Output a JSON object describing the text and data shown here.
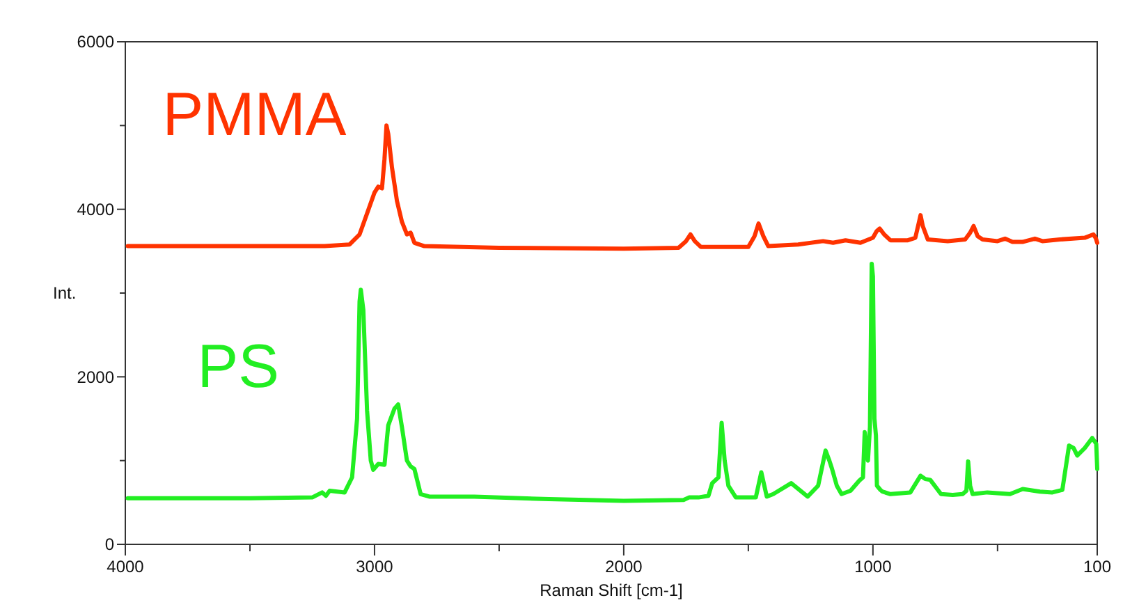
{
  "chart_data": {
    "type": "line",
    "xlabel": "Raman Shift [cm-1]",
    "ylabel": "Int.",
    "xlim": [
      4000,
      100
    ],
    "ylim": [
      0,
      6000
    ],
    "xticks": [
      4000,
      {
        "value": 3500,
        "label": null
      },
      3000,
      {
        "value": 2500,
        "label": null
      },
      2000,
      {
        "value": 1500,
        "label": null
      },
      1000,
      {
        "value": 500,
        "label": null
      },
      100
    ],
    "yticks": [
      0,
      {
        "value": 1000,
        "label": null
      },
      2000,
      {
        "value": 3000,
        "label": null
      },
      4000,
      {
        "value": 5000,
        "label": null
      },
      6000
    ],
    "grid": false,
    "legend": false,
    "marker": "none",
    "line_style": "solid",
    "series": [
      {
        "name": "PMMA",
        "color": "#ff3300",
        "x": [
          3990,
          3500,
          3200,
          3100,
          3060,
          3030,
          3000,
          2985,
          2970,
          2960,
          2952,
          2945,
          2930,
          2910,
          2890,
          2870,
          2855,
          2840,
          2800,
          2500,
          2000,
          1780,
          1750,
          1732,
          1715,
          1690,
          1500,
          1475,
          1459,
          1440,
          1420,
          1300,
          1200,
          1160,
          1110,
          1050,
          1000,
          985,
          973,
          955,
          930,
          860,
          830,
          815,
          809,
          800,
          780,
          700,
          630,
          610,
          596,
          580,
          560,
          500,
          470,
          440,
          400,
          350,
          320,
          250,
          150,
          115,
          105,
          100
        ],
        "values": [
          3560,
          3560,
          3560,
          3580,
          3700,
          3950,
          4200,
          4270,
          4250,
          4600,
          5000,
          4900,
          4500,
          4100,
          3850,
          3700,
          3720,
          3600,
          3560,
          3540,
          3530,
          3540,
          3620,
          3700,
          3620,
          3550,
          3550,
          3680,
          3830,
          3680,
          3560,
          3580,
          3620,
          3600,
          3630,
          3600,
          3660,
          3740,
          3770,
          3700,
          3630,
          3630,
          3660,
          3850,
          3930,
          3800,
          3640,
          3620,
          3640,
          3720,
          3800,
          3680,
          3640,
          3620,
          3650,
          3610,
          3610,
          3650,
          3620,
          3640,
          3660,
          3700,
          3650,
          3600
        ]
      },
      {
        "name": "PS",
        "color": "#22ee22",
        "x": [
          3990,
          3500,
          3250,
          3210,
          3195,
          3180,
          3120,
          3090,
          3070,
          3060,
          3055,
          3045,
          3030,
          3015,
          3005,
          2985,
          2960,
          2945,
          2920,
          2905,
          2890,
          2870,
          2855,
          2840,
          2815,
          2780,
          2600,
          2300,
          2000,
          1760,
          1738,
          1700,
          1660,
          1645,
          1620,
          1607,
          1595,
          1580,
          1550,
          1470,
          1448,
          1426,
          1400,
          1328,
          1262,
          1220,
          1190,
          1175,
          1164,
          1145,
          1126,
          1090,
          1055,
          1040,
          1033,
          1020,
          1012,
          1005,
          1000,
          994,
          988,
          984,
          970,
          962,
          930,
          850,
          809,
          790,
          770,
          727,
          680,
          640,
          625,
          618,
          610,
          600,
          541,
          450,
          399,
          330,
          280,
          240,
          213,
          195,
          180,
          150,
          120,
          104,
          100
        ],
        "values": [
          550,
          550,
          560,
          620,
          580,
          640,
          620,
          800,
          1500,
          2900,
          3040,
          2800,
          1600,
          1000,
          890,
          960,
          950,
          1420,
          1620,
          1670,
          1400,
          1000,
          930,
          900,
          600,
          570,
          570,
          540,
          520,
          530,
          560,
          560,
          580,
          730,
          800,
          1450,
          1000,
          700,
          560,
          560,
          860,
          570,
          600,
          730,
          570,
          700,
          1120,
          1000,
          900,
          700,
          600,
          640,
          760,
          800,
          1340,
          1000,
          1400,
          3350,
          3200,
          1500,
          1300,
          700,
          650,
          630,
          600,
          620,
          820,
          780,
          770,
          600,
          590,
          600,
          640,
          990,
          700,
          600,
          620,
          600,
          660,
          630,
          620,
          650,
          1180,
          1150,
          1060,
          1150,
          1270,
          1200,
          900
        ]
      }
    ]
  }
}
